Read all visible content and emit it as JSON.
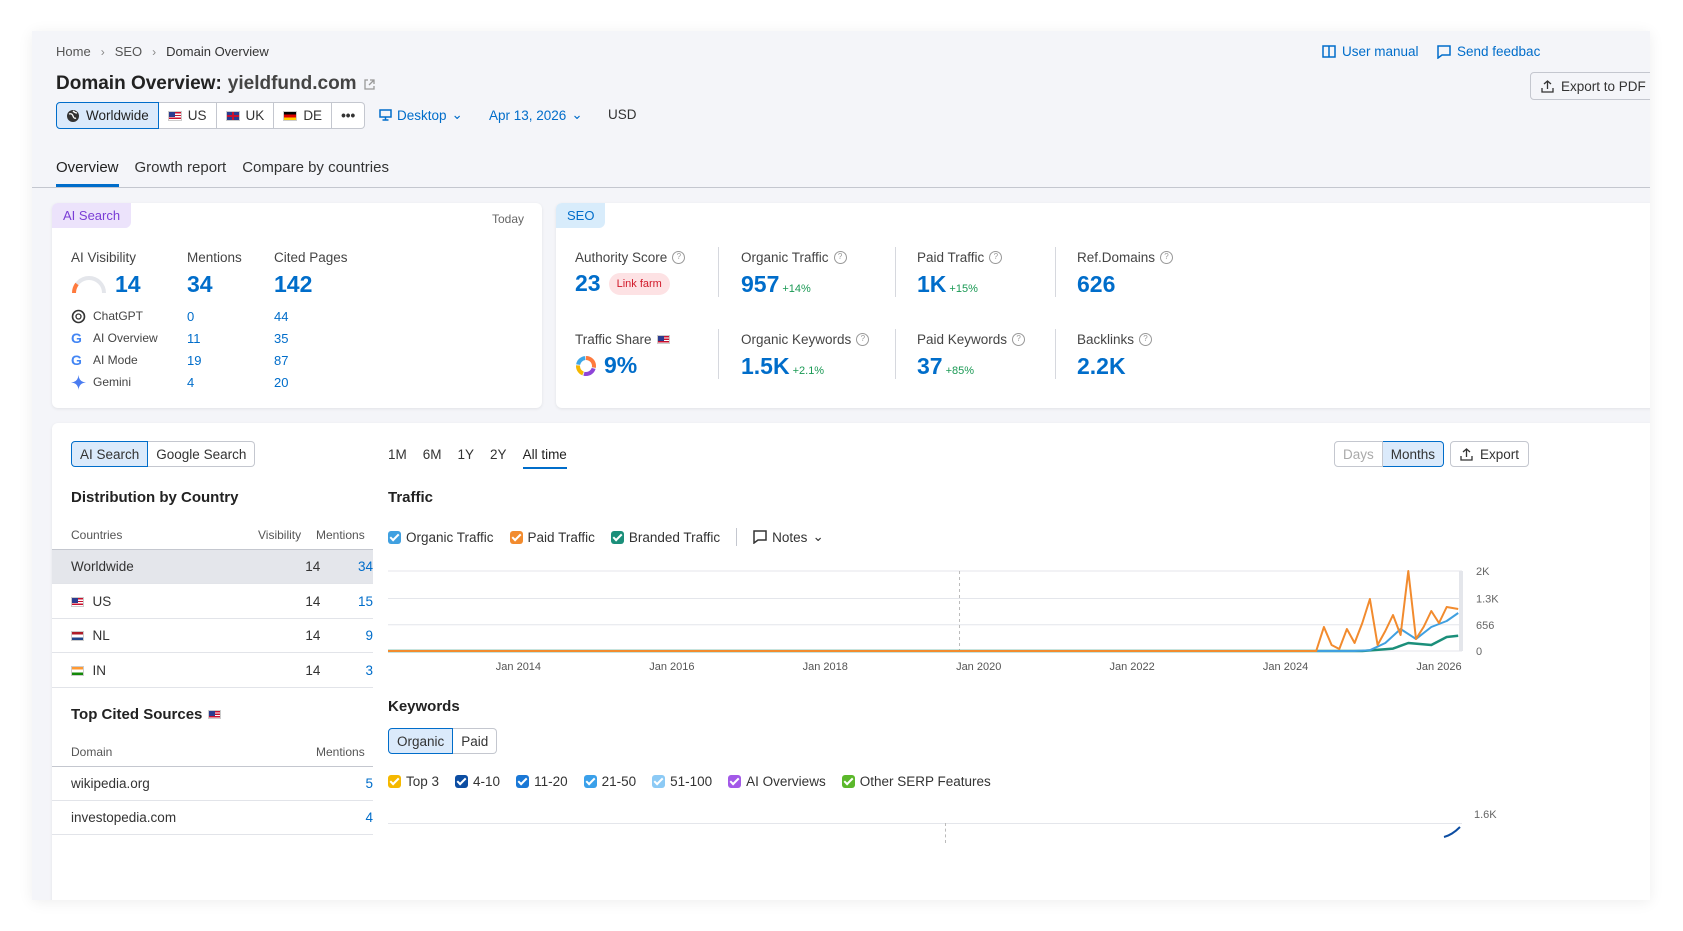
{
  "breadcrumb": [
    "Home",
    "SEO",
    "Domain Overview"
  ],
  "header": {
    "title_prefix": "Domain Overview:",
    "domain": "yieldfund.com",
    "user_manual": "User manual",
    "send_feedback": "Send feedbac",
    "export_pdf": "Export to PDF"
  },
  "db_buttons": [
    "Worldwide",
    "US",
    "UK",
    "DE",
    "•••"
  ],
  "filters": {
    "device": "Desktop",
    "date": "Apr 13, 2026",
    "currency": "USD"
  },
  "tabs": [
    "Overview",
    "Growth report",
    "Compare by countries"
  ],
  "ai_search": {
    "chip": "AI Search",
    "today": "Today",
    "visibility_label": "AI Visibility",
    "visibility": "14",
    "mentions_label": "Mentions",
    "mentions": "34",
    "cited_label": "Cited Pages",
    "cited": "142",
    "engines": [
      {
        "name": "ChatGPT",
        "mentions": "0",
        "cited": "44"
      },
      {
        "name": "AI Overview",
        "mentions": "11",
        "cited": "35"
      },
      {
        "name": "AI Mode",
        "mentions": "19",
        "cited": "87"
      },
      {
        "name": "Gemini",
        "mentions": "4",
        "cited": "20"
      }
    ]
  },
  "seo": {
    "chip": "SEO",
    "authority_label": "Authority Score",
    "authority": "23",
    "link_farm": "Link farm",
    "organic_traffic_label": "Organic Traffic",
    "organic_traffic": "957",
    "organic_traffic_delta": "+14%",
    "paid_traffic_label": "Paid Traffic",
    "paid_traffic": "1K",
    "paid_traffic_delta": "+15%",
    "ref_domains_label": "Ref.Domains",
    "ref_domains": "626",
    "traffic_share_label": "Traffic Share",
    "traffic_share": "9%",
    "organic_keywords_label": "Organic Keywords",
    "organic_keywords": "1.5K",
    "organic_keywords_delta": "+2.1%",
    "paid_keywords_label": "Paid Keywords",
    "paid_keywords": "37",
    "paid_keywords_delta": "+85%",
    "backlinks_label": "Backlinks",
    "backlinks": "2.2K"
  },
  "left_panel": {
    "toggle": [
      "AI Search",
      "Google Search"
    ],
    "distribution_title": "Distribution by Country",
    "col_countries": "Countries",
    "col_visibility": "Visibility",
    "col_mentions": "Mentions",
    "countries": [
      {
        "name": "Worldwide",
        "visibility": "14",
        "mentions": "34"
      },
      {
        "name": "US",
        "visibility": "14",
        "mentions": "15"
      },
      {
        "name": "NL",
        "visibility": "14",
        "mentions": "9"
      },
      {
        "name": "IN",
        "visibility": "14",
        "mentions": "3"
      }
    ],
    "sources_title": "Top Cited Sources",
    "col_domain": "Domain",
    "col_src_mentions": "Mentions",
    "sources": [
      {
        "domain": "wikipedia.org",
        "mentions": "5"
      },
      {
        "domain": "investopedia.com",
        "mentions": "4"
      }
    ]
  },
  "periods": [
    "1M",
    "6M",
    "1Y",
    "2Y",
    "All time"
  ],
  "granularity": [
    "Days",
    "Months"
  ],
  "export": "Export",
  "traffic": {
    "title": "Traffic",
    "legend": [
      "Organic Traffic",
      "Paid Traffic",
      "Branded Traffic"
    ],
    "notes": "Notes"
  },
  "keywords": {
    "title": "Keywords",
    "toggle": [
      "Organic",
      "Paid"
    ],
    "legend": [
      "Top 3",
      "4-10",
      "11-20",
      "21-50",
      "51-100",
      "AI Overviews",
      "Other SERP Features"
    ],
    "y_top": "1.6K"
  },
  "colors": {
    "accent": "#006dca",
    "organic": "#40a0e0",
    "paid": "#f28b2e",
    "branded": "#1b8f7a"
  },
  "chart_data": {
    "type": "line",
    "title": "Traffic",
    "y_ticks": [
      "0",
      "656",
      "1.3K",
      "2K"
    ],
    "x_ticks": [
      "Jan 2014",
      "Jan 2016",
      "Jan 2018",
      "Jan 2020",
      "Jan 2022",
      "Jan 2024",
      "Jan 2026"
    ],
    "ylim": [
      0,
      2000
    ],
    "xlim": [
      2012.3,
      2026.3
    ],
    "series": [
      {
        "name": "Organic Traffic",
        "x": [
          2012.3,
          2024.9,
          2025.1,
          2025.3,
          2025.5,
          2025.7,
          2025.9,
          2026.1,
          2026.25
        ],
        "y": [
          0,
          0,
          20,
          200,
          550,
          300,
          600,
          750,
          950
        ]
      },
      {
        "name": "Paid Traffic",
        "x": [
          2012.3,
          2024.4,
          2024.5,
          2024.6,
          2024.7,
          2024.8,
          2024.9,
          2025.0,
          2025.1,
          2025.2,
          2025.3,
          2025.4,
          2025.5,
          2025.6,
          2025.7,
          2025.8,
          2025.9,
          2026.0,
          2026.1,
          2026.25
        ],
        "y": [
          0,
          0,
          600,
          150,
          50,
          550,
          200,
          700,
          1300,
          150,
          500,
          900,
          400,
          2000,
          300,
          600,
          1000,
          700,
          1100,
          1050
        ]
      },
      {
        "name": "Branded Traffic",
        "x": [
          2012.3,
          2025.0,
          2025.4,
          2025.6,
          2025.9,
          2026.1,
          2026.25
        ],
        "y": [
          0,
          0,
          60,
          200,
          150,
          350,
          380
        ]
      }
    ]
  }
}
